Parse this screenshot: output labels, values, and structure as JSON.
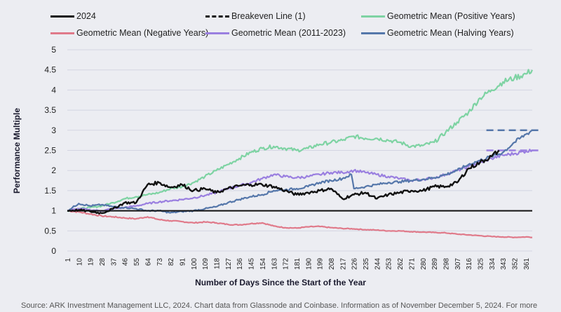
{
  "legend": [
    {
      "label": "2024",
      "color": "#111111",
      "style": "solid"
    },
    {
      "label": "Breakeven Line (1)",
      "color": "#111111",
      "style": "dashed"
    },
    {
      "label": "Geometric Mean (Positive Years)",
      "color": "#7ed3a3",
      "style": "solid"
    },
    {
      "label": "Geometric Mean (Negative Years)",
      "color": "#e07a8a",
      "style": "solid"
    },
    {
      "label": "Geometric Mean (2011-2023)",
      "color": "#9a7fe0",
      "style": "solid"
    },
    {
      "label": "Geometric Mean (Halving Years)",
      "color": "#5577aa",
      "style": "solid"
    }
  ],
  "source_note": "Source: ARK Investment Management LLC, 2024. Chart data from Glassnode and Coinbase. Information as of November December 5, 2024. For more",
  "chart_data": {
    "type": "line",
    "title": "",
    "xlabel": "Number of Days Since the Start of the Year",
    "ylabel": "Performance Multiple",
    "xlim": [
      1,
      366
    ],
    "ylim": [
      0,
      5
    ],
    "yticks": [
      0,
      0.5,
      1,
      1.5,
      2,
      2.5,
      3,
      3.5,
      4,
      4.5,
      5
    ],
    "ytick_labels": [
      "0",
      "0.5",
      "1",
      "1.5",
      "2",
      "2.5",
      "3",
      "3.5",
      "4",
      "4.5",
      "5"
    ],
    "xtick_labels": [
      "1",
      "10",
      "19",
      "28",
      "37",
      "46",
      "55",
      "64",
      "73",
      "82",
      "91",
      "100",
      "109",
      "118",
      "127",
      "136",
      "145",
      "154",
      "163",
      "172",
      "181",
      "190",
      "199",
      "208",
      "217",
      "226",
      "235",
      "244",
      "253",
      "262",
      "271",
      "280",
      "289",
      "298",
      "307",
      "316",
      "325",
      "334",
      "343",
      "352",
      "361"
    ],
    "grid": true,
    "legend_position": "top",
    "series": [
      {
        "name": "2024",
        "color": "#111111",
        "x": [
          1,
          10,
          19,
          28,
          37,
          46,
          55,
          64,
          73,
          82,
          91,
          100,
          109,
          118,
          127,
          136,
          145,
          154,
          163,
          172,
          181,
          190,
          199,
          208,
          217,
          226,
          235,
          244,
          253,
          262,
          271,
          280,
          289,
          298,
          307,
          316,
          325,
          334,
          340
        ],
        "y": [
          1.0,
          1.02,
          0.98,
          0.94,
          1.05,
          1.2,
          1.2,
          1.65,
          1.7,
          1.58,
          1.65,
          1.5,
          1.55,
          1.45,
          1.55,
          1.62,
          1.65,
          1.65,
          1.6,
          1.5,
          1.4,
          1.45,
          1.5,
          1.55,
          1.3,
          1.4,
          1.45,
          1.3,
          1.4,
          1.45,
          1.5,
          1.5,
          1.6,
          1.6,
          1.7,
          2.05,
          2.2,
          2.35,
          2.5
        ]
      },
      {
        "name": "Breakeven Line (1)",
        "color": "#111111",
        "x": [
          1,
          366
        ],
        "y": [
          1,
          1
        ]
      },
      {
        "name": "Geometric Mean (Positive Years)",
        "color": "#7ed3a3",
        "x": [
          1,
          10,
          19,
          28,
          37,
          46,
          55,
          64,
          73,
          82,
          91,
          100,
          109,
          118,
          127,
          136,
          145,
          154,
          163,
          172,
          181,
          190,
          199,
          208,
          217,
          226,
          235,
          244,
          253,
          262,
          271,
          280,
          289,
          298,
          307,
          316,
          325,
          334,
          343,
          352,
          361,
          366
        ],
        "y": [
          1.0,
          1.05,
          1.08,
          1.12,
          1.2,
          1.3,
          1.35,
          1.4,
          1.45,
          1.55,
          1.6,
          1.7,
          1.85,
          2.0,
          2.15,
          2.3,
          2.45,
          2.55,
          2.6,
          2.55,
          2.5,
          2.55,
          2.65,
          2.7,
          2.75,
          2.85,
          2.8,
          2.8,
          2.75,
          2.7,
          2.6,
          2.62,
          2.7,
          2.95,
          3.2,
          3.45,
          3.8,
          4.0,
          4.2,
          4.3,
          4.4,
          4.5
        ]
      },
      {
        "name": "Geometric Mean (Negative Years)",
        "color": "#e07a8a",
        "x": [
          1,
          10,
          19,
          28,
          37,
          46,
          55,
          64,
          73,
          82,
          91,
          100,
          109,
          118,
          127,
          136,
          145,
          154,
          163,
          172,
          181,
          190,
          199,
          208,
          217,
          226,
          235,
          244,
          253,
          262,
          271,
          280,
          289,
          298,
          307,
          316,
          325,
          334,
          343,
          352,
          361,
          366
        ],
        "y": [
          1.0,
          0.97,
          0.92,
          0.87,
          0.85,
          0.82,
          0.8,
          0.85,
          0.78,
          0.75,
          0.73,
          0.7,
          0.72,
          0.7,
          0.66,
          0.65,
          0.68,
          0.7,
          0.62,
          0.58,
          0.57,
          0.6,
          0.61,
          0.58,
          0.56,
          0.55,
          0.53,
          0.52,
          0.5,
          0.5,
          0.48,
          0.47,
          0.46,
          0.45,
          0.42,
          0.4,
          0.38,
          0.36,
          0.35,
          0.34,
          0.35,
          0.34
        ]
      },
      {
        "name": "Geometric Mean (2011-2023)",
        "color": "#9a7fe0",
        "x": [
          1,
          10,
          19,
          28,
          37,
          46,
          55,
          64,
          73,
          82,
          91,
          100,
          109,
          118,
          127,
          136,
          145,
          154,
          163,
          172,
          181,
          190,
          199,
          208,
          217,
          226,
          235,
          244,
          253,
          262,
          271,
          280,
          289,
          298,
          307,
          316,
          325,
          334,
          343,
          352,
          361,
          366
        ],
        "y": [
          1.0,
          1.05,
          1.02,
          1.0,
          1.05,
          1.08,
          1.12,
          1.18,
          1.22,
          1.25,
          1.28,
          1.32,
          1.38,
          1.45,
          1.55,
          1.62,
          1.7,
          1.8,
          1.9,
          1.85,
          1.82,
          1.85,
          1.9,
          1.95,
          1.95,
          2.0,
          1.95,
          1.9,
          1.85,
          1.8,
          1.75,
          1.78,
          1.82,
          1.9,
          2.0,
          2.1,
          2.2,
          2.3,
          2.38,
          2.42,
          2.48,
          2.5
        ]
      },
      {
        "name": "Geometric Mean (Halving Years)",
        "color": "#5577aa",
        "x": [
          1,
          10,
          19,
          28,
          37,
          46,
          55,
          64,
          73,
          82,
          91,
          100,
          109,
          118,
          127,
          136,
          145,
          154,
          163,
          172,
          181,
          190,
          199,
          208,
          217,
          224,
          226,
          235,
          244,
          253,
          262,
          271,
          280,
          289,
          298,
          307,
          316,
          325,
          334,
          343,
          352,
          361,
          366
        ],
        "y": [
          1.0,
          1.18,
          1.12,
          1.15,
          1.1,
          1.08,
          1.05,
          1.0,
          1.0,
          0.95,
          0.98,
          1.0,
          1.05,
          1.1,
          1.2,
          1.28,
          1.35,
          1.4,
          1.5,
          1.52,
          1.55,
          1.6,
          1.7,
          1.75,
          1.8,
          1.9,
          1.55,
          1.6,
          1.65,
          1.7,
          1.72,
          1.75,
          1.78,
          1.82,
          1.9,
          2.0,
          2.15,
          2.25,
          2.35,
          2.45,
          2.7,
          2.9,
          3.0
        ]
      }
    ],
    "annotations": [
      {
        "type": "dashed",
        "value": 3.0,
        "color": "#5577aa",
        "x_from": 330,
        "x_to": 366
      },
      {
        "type": "dashed",
        "value": 2.5,
        "color": "#9a7fe0",
        "x_from": 330,
        "x_to": 366
      }
    ]
  }
}
